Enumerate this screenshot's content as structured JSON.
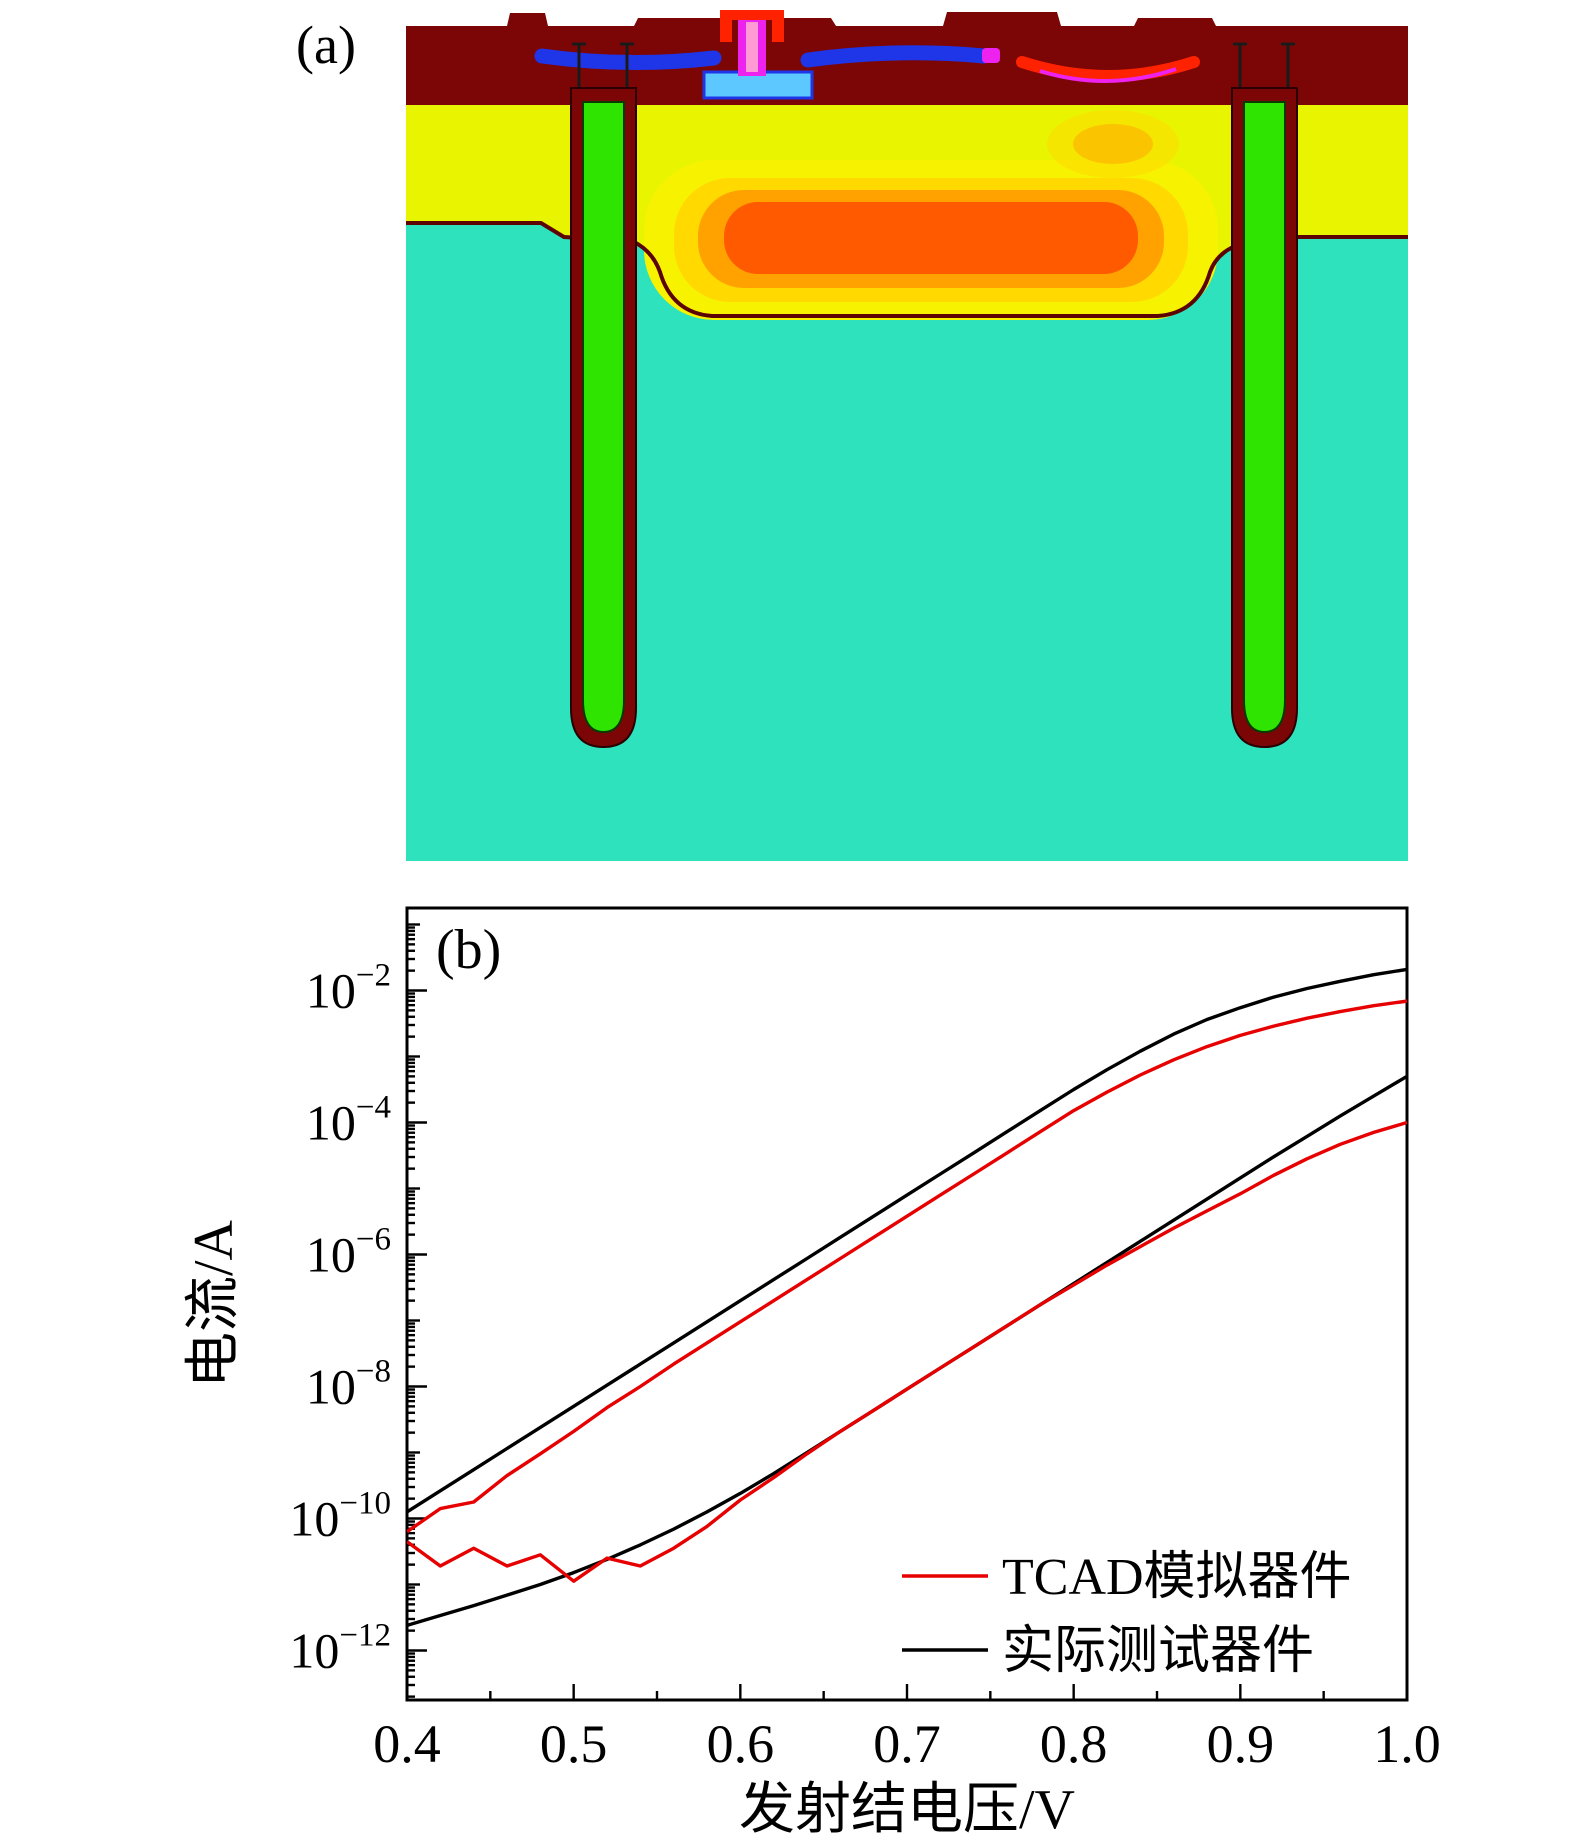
{
  "figure": {
    "panel_a": {
      "label": "(a)"
    },
    "panel_b": {
      "label": "(b)"
    }
  },
  "colors": {
    "substrate": "#2de2bd",
    "epi": "#e9f500",
    "top_layer": "#7c0606",
    "trench_fill": "#2ee400",
    "trench_outline": "#5c0404",
    "buried_ring1": "#f7f300",
    "buried_ring2": "#ffd900",
    "buried_ring3": "#ffa200",
    "buried_core": "#ff5a00",
    "metal_blue": "#1f35e8",
    "emitter_magenta": "#ee22ee",
    "emitter_pink": "#ff9ad5",
    "contact_red": "#ff2200",
    "pad_lightblue": "#5cc8ff",
    "contact_dark": "#1a1a1a",
    "curve_red": "#e60000",
    "curve_black": "#000000"
  },
  "chart_data": {
    "type": "line",
    "title": "",
    "xlabel": "发射结电压/V",
    "ylabel": "电流/A",
    "xlim": [
      0.4,
      1.0
    ],
    "ylog_lim": [
      -12.75,
      -0.75
    ],
    "x_ticks": [
      0.4,
      0.5,
      0.6,
      0.7,
      0.8,
      0.9,
      1.0
    ],
    "x_tick_labels": [
      "0.4",
      "0.5",
      "0.6",
      "0.7",
      "0.8",
      "0.9",
      "1.0"
    ],
    "y_tick_exponents": [
      -2,
      -4,
      -6,
      -8,
      -10,
      -12
    ],
    "grid": false,
    "legend": {
      "position": "lower right",
      "entries": [
        {
          "label": "TCAD模拟器件",
          "color": "#e60000"
        },
        {
          "label": "实际测试器件",
          "color": "#000000"
        }
      ]
    },
    "x": [
      0.4,
      0.42,
      0.44,
      0.46,
      0.48,
      0.5,
      0.52,
      0.54,
      0.56,
      0.58,
      0.6,
      0.62,
      0.64,
      0.66,
      0.68,
      0.7,
      0.72,
      0.74,
      0.76,
      0.78,
      0.8,
      0.82,
      0.84,
      0.86,
      0.88,
      0.9,
      0.92,
      0.94,
      0.96,
      0.98,
      1.0
    ],
    "series": [
      {
        "name": "measured-upper-curve",
        "legend_label": "实际测试器件",
        "color": "#000000",
        "log10_current": [
          -9.9,
          -9.58,
          -9.26,
          -8.94,
          -8.62,
          -8.3,
          -7.98,
          -7.66,
          -7.34,
          -7.02,
          -6.7,
          -6.38,
          -6.06,
          -5.74,
          -5.42,
          -5.1,
          -4.78,
          -4.46,
          -4.14,
          -3.82,
          -3.5,
          -3.2,
          -2.92,
          -2.66,
          -2.44,
          -2.26,
          -2.1,
          -1.97,
          -1.86,
          -1.76,
          -1.68
        ]
      },
      {
        "name": "measured-lower-curve",
        "legend_label": "实际测试器件",
        "color": "#000000",
        "log10_current": [
          -11.62,
          -11.47,
          -11.32,
          -11.16,
          -11.0,
          -10.82,
          -10.62,
          -10.4,
          -10.16,
          -9.9,
          -9.62,
          -9.32,
          -9.0,
          -8.68,
          -8.36,
          -8.04,
          -7.72,
          -7.4,
          -7.08,
          -6.76,
          -6.44,
          -6.12,
          -5.8,
          -5.48,
          -5.16,
          -4.84,
          -4.52,
          -4.21,
          -3.9,
          -3.6,
          -3.3
        ]
      },
      {
        "name": "tcad-upper-curve",
        "legend_label": "TCAD模拟器件",
        "color": "#e60000",
        "log10_current": [
          -10.2,
          -9.85,
          -9.75,
          -9.35,
          -9.02,
          -8.68,
          -8.32,
          -8.0,
          -7.66,
          -7.34,
          -7.02,
          -6.7,
          -6.38,
          -6.06,
          -5.74,
          -5.42,
          -5.1,
          -4.78,
          -4.46,
          -4.14,
          -3.82,
          -3.54,
          -3.28,
          -3.05,
          -2.85,
          -2.68,
          -2.54,
          -2.42,
          -2.32,
          -2.23,
          -2.16
        ]
      },
      {
        "name": "tcad-lower-curve",
        "legend_label": "TCAD模拟器件",
        "color": "#e60000",
        "log10_current": [
          -10.35,
          -10.72,
          -10.45,
          -10.72,
          -10.55,
          -10.95,
          -10.6,
          -10.72,
          -10.45,
          -10.12,
          -9.72,
          -9.38,
          -9.02,
          -8.68,
          -8.36,
          -8.04,
          -7.72,
          -7.4,
          -7.08,
          -6.76,
          -6.46,
          -6.16,
          -5.88,
          -5.6,
          -5.34,
          -5.08,
          -4.8,
          -4.55,
          -4.33,
          -4.15,
          -4.0
        ]
      }
    ]
  }
}
